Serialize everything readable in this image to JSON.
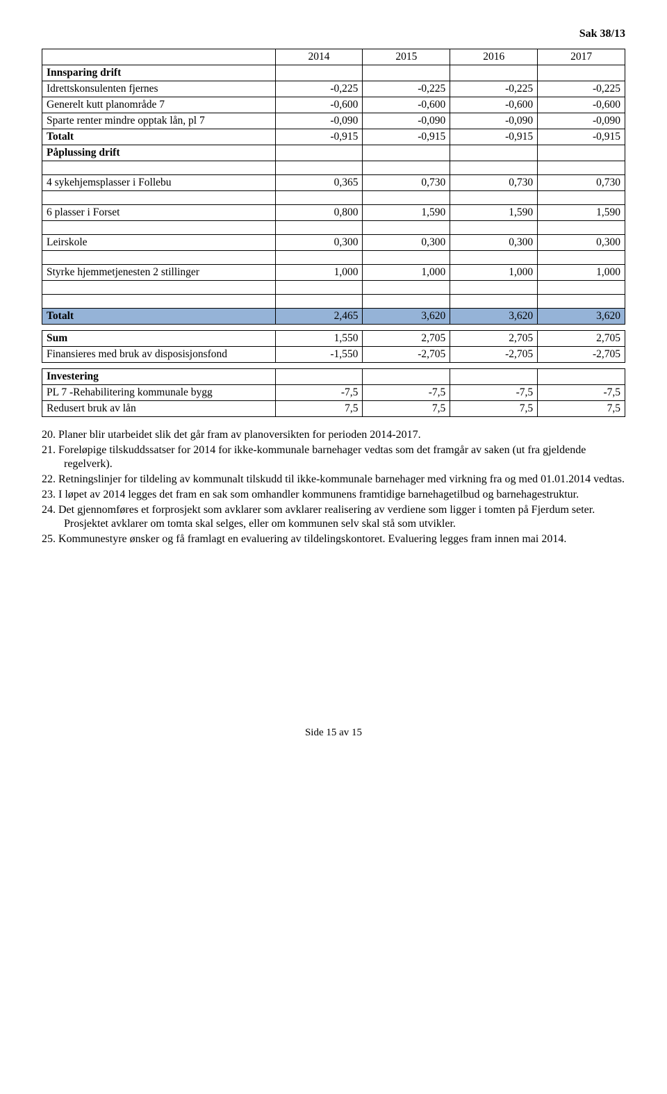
{
  "header": {
    "sak": "Sak 38/13"
  },
  "table1": {
    "years": [
      "2014",
      "2015",
      "2016",
      "2017"
    ],
    "rows": [
      {
        "label": "Innsparing drift",
        "bold": true,
        "vals": [
          "",
          "",
          "",
          ""
        ]
      },
      {
        "label": "Idrettskonsulenten fjernes",
        "vals": [
          "-0,225",
          "-0,225",
          "-0,225",
          "-0,225"
        ]
      },
      {
        "label": "Generelt kutt planområde 7",
        "vals": [
          "-0,600",
          "-0,600",
          "-0,600",
          "-0,600"
        ]
      },
      {
        "label": "Sparte renter mindre opptak lån, pl 7",
        "vals": [
          "-0,090",
          "-0,090",
          "-0,090",
          "-0,090"
        ]
      },
      {
        "label": "Totalt",
        "bold": true,
        "vals": [
          "-0,915",
          "-0,915",
          "-0,915",
          "-0,915"
        ]
      },
      {
        "label": "Påplussing drift",
        "bold": true,
        "vals": [
          "",
          "",
          "",
          ""
        ]
      }
    ],
    "items": [
      {
        "label": "4 sykehjemsplasser i Follebu",
        "vals": [
          "0,365",
          "0,730",
          "0,730",
          "0,730"
        ]
      },
      {
        "label": "6 plasser i Forset",
        "vals": [
          "0,800",
          "1,590",
          "1,590",
          "1,590"
        ]
      },
      {
        "label": "Leirskole",
        "vals": [
          "0,300",
          "0,300",
          "0,300",
          "0,300"
        ]
      },
      {
        "label": "Styrke hjemmetjenesten 2 stillinger",
        "vals": [
          "1,000",
          "1,000",
          "1,000",
          "1,000"
        ]
      }
    ],
    "totalRow": {
      "label": "Totalt",
      "vals": [
        "2,465",
        "3,620",
        "3,620",
        "3,620"
      ]
    }
  },
  "table2": {
    "rows": [
      {
        "label": "Sum",
        "bold": true,
        "vals": [
          "1,550",
          "2,705",
          "2,705",
          "2,705"
        ]
      },
      {
        "label": "Finansieres med bruk av disposisjonsfond",
        "vals": [
          "-1,550",
          "-2,705",
          "-2,705",
          "-2,705"
        ]
      }
    ]
  },
  "table3": {
    "rows": [
      {
        "label": "Investering",
        "bold": true,
        "vals": [
          "",
          "",
          "",
          ""
        ]
      },
      {
        "label": "PL 7 -Rehabilitering kommunale bygg",
        "vals": [
          "-7,5",
          "-7,5",
          "-7,5",
          "-7,5"
        ]
      },
      {
        "label": "Redusert bruk av lån",
        "vals": [
          "7,5",
          "7,5",
          "7,5",
          "7,5"
        ]
      }
    ]
  },
  "list": [
    {
      "n": "20.",
      "t": "Planer blir utarbeidet slik det går fram av planoversikten for perioden 2014-2017."
    },
    {
      "n": "21.",
      "t": "Foreløpige tilskuddssatser for 2014 for ikke-kommunale barnehager vedtas som det framgår av saken (ut fra gjeldende regelverk)."
    },
    {
      "n": "22.",
      "t": "Retningslinjer for tildeling av kommunalt tilskudd til ikke-kommunale barnehager med virkning fra og med 01.01.2014 vedtas."
    },
    {
      "n": "23.",
      "t": "I løpet av 2014 legges det fram en sak som omhandler kommunens framtidige barnehagetilbud og barnehagestruktur."
    },
    {
      "n": "24.",
      "t": "Det gjennomføres et forprosjekt som avklarer som avklarer realisering av verdiene som ligger i tomten på Fjerdum seter. Prosjektet avklarer om tomta skal selges, eller om kommunen selv skal stå som utvikler."
    },
    {
      "n": "25.",
      "t": "Kommunestyre ønsker og få framlagt en evaluering av tildelingskontoret. Evaluering legges fram innen mai 2014."
    }
  ],
  "footer": "Side 15 av 15"
}
